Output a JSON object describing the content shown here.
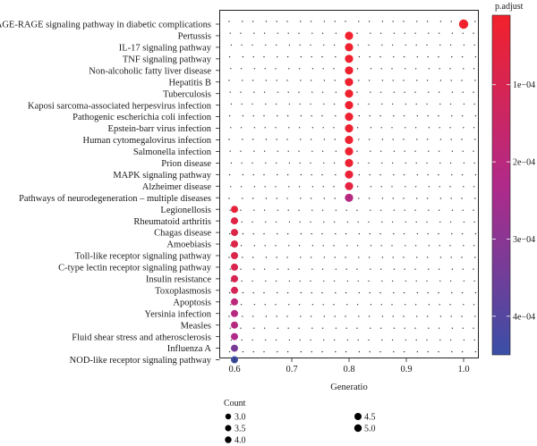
{
  "chart_data": {
    "type": "scatter",
    "xlabel": "Generatio",
    "ylabel": "",
    "xlim": [
      0.575,
      1.025
    ],
    "xticks": [
      0.6,
      0.7,
      0.8,
      0.9,
      1.0
    ],
    "xtick_labels": [
      "0.6",
      "0.7",
      "0.8",
      "0.9",
      "1.0"
    ],
    "grid": false,
    "color_legend": {
      "title": "p.adjust",
      "range": [
        1e-05,
        0.00045
      ],
      "ticks": [
        0.0001,
        0.0002,
        0.0003,
        0.0004
      ],
      "tick_labels": [
        "1e−04",
        "2e−04",
        "3e−04",
        "4e−04"
      ],
      "low_color": "#f2212b",
      "high_color": "#3a4fa6"
    },
    "size_legend": {
      "title": "Count",
      "entries": [
        {
          "label": "3.0",
          "value": 3.0
        },
        {
          "label": "3.5",
          "value": 3.5
        },
        {
          "label": "4.0",
          "value": 4.0
        },
        {
          "label": "4.5",
          "value": 4.5
        },
        {
          "label": "5.0",
          "value": 5.0
        }
      ]
    },
    "terms": [
      {
        "name": "AGE-RAGE signaling pathway in diabetic complications",
        "generatio": 1.0,
        "count": 5,
        "p_adjust": 1.2e-05
      },
      {
        "name": "Pertussis",
        "generatio": 0.8,
        "count": 4,
        "p_adjust": 1.5e-05
      },
      {
        "name": "IL-17 signaling pathway",
        "generatio": 0.8,
        "count": 4,
        "p_adjust": 1.6e-05
      },
      {
        "name": "TNF signaling pathway",
        "generatio": 0.8,
        "count": 4,
        "p_adjust": 1.6e-05
      },
      {
        "name": "Non-alcoholic fatty liver disease",
        "generatio": 0.8,
        "count": 4,
        "p_adjust": 1.8e-05
      },
      {
        "name": "Hepatitis B",
        "generatio": 0.8,
        "count": 4,
        "p_adjust": 1.9e-05
      },
      {
        "name": "Tuberculosis",
        "generatio": 0.8,
        "count": 4,
        "p_adjust": 2e-05
      },
      {
        "name": "Kaposi sarcoma-associated herpesvirus infection",
        "generatio": 0.8,
        "count": 4,
        "p_adjust": 2.1e-05
      },
      {
        "name": "Pathogenic escherichia coli infection",
        "generatio": 0.8,
        "count": 4,
        "p_adjust": 2.2e-05
      },
      {
        "name": "Epstein-barr virus infection",
        "generatio": 0.8,
        "count": 4,
        "p_adjust": 2.3e-05
      },
      {
        "name": "Human cytomegalovirus infection",
        "generatio": 0.8,
        "count": 4,
        "p_adjust": 2.4e-05
      },
      {
        "name": "Salmonella infection",
        "generatio": 0.8,
        "count": 4,
        "p_adjust": 2.5e-05
      },
      {
        "name": "Prion disease",
        "generatio": 0.8,
        "count": 4,
        "p_adjust": 2.6e-05
      },
      {
        "name": "MAPK signaling pathway",
        "generatio": 0.8,
        "count": 4,
        "p_adjust": 3.5e-05
      },
      {
        "name": "Alzheimer disease",
        "generatio": 0.8,
        "count": 4,
        "p_adjust": 6e-05
      },
      {
        "name": "Pathways of neurodegeneration – multiple diseases",
        "generatio": 0.8,
        "count": 4,
        "p_adjust": 0.00021
      },
      {
        "name": "Legionellosis",
        "generatio": 0.6,
        "count": 3,
        "p_adjust": 4.5e-05
      },
      {
        "name": "Rheumatoid arthritis",
        "generatio": 0.6,
        "count": 3,
        "p_adjust": 7e-05
      },
      {
        "name": "Chagas disease",
        "generatio": 0.6,
        "count": 3,
        "p_adjust": 8e-05
      },
      {
        "name": "Amoebiasis",
        "generatio": 0.6,
        "count": 3,
        "p_adjust": 8e-05
      },
      {
        "name": "Toll-like receptor signaling pathway",
        "generatio": 0.6,
        "count": 3,
        "p_adjust": 8.5e-05
      },
      {
        "name": "C-type lectin receptor signaling pathway",
        "generatio": 0.6,
        "count": 3,
        "p_adjust": 9e-05
      },
      {
        "name": "Insulin resistance",
        "generatio": 0.6,
        "count": 3,
        "p_adjust": 0.0001
      },
      {
        "name": "Toxoplasmosis",
        "generatio": 0.6,
        "count": 3,
        "p_adjust": 0.00011
      },
      {
        "name": "Apoptosis",
        "generatio": 0.6,
        "count": 3,
        "p_adjust": 0.00019
      },
      {
        "name": "Yersinia infection",
        "generatio": 0.6,
        "count": 3,
        "p_adjust": 0.00021
      },
      {
        "name": "Measles",
        "generatio": 0.6,
        "count": 3,
        "p_adjust": 0.00021
      },
      {
        "name": "Fluid shear stress and atherosclerosis",
        "generatio": 0.6,
        "count": 3,
        "p_adjust": 0.00023
      },
      {
        "name": "Influenza A",
        "generatio": 0.6,
        "count": 3,
        "p_adjust": 0.00033
      },
      {
        "name": "NOD-like receptor signaling pathway",
        "generatio": 0.6,
        "count": 3,
        "p_adjust": 0.00044
      }
    ]
  }
}
